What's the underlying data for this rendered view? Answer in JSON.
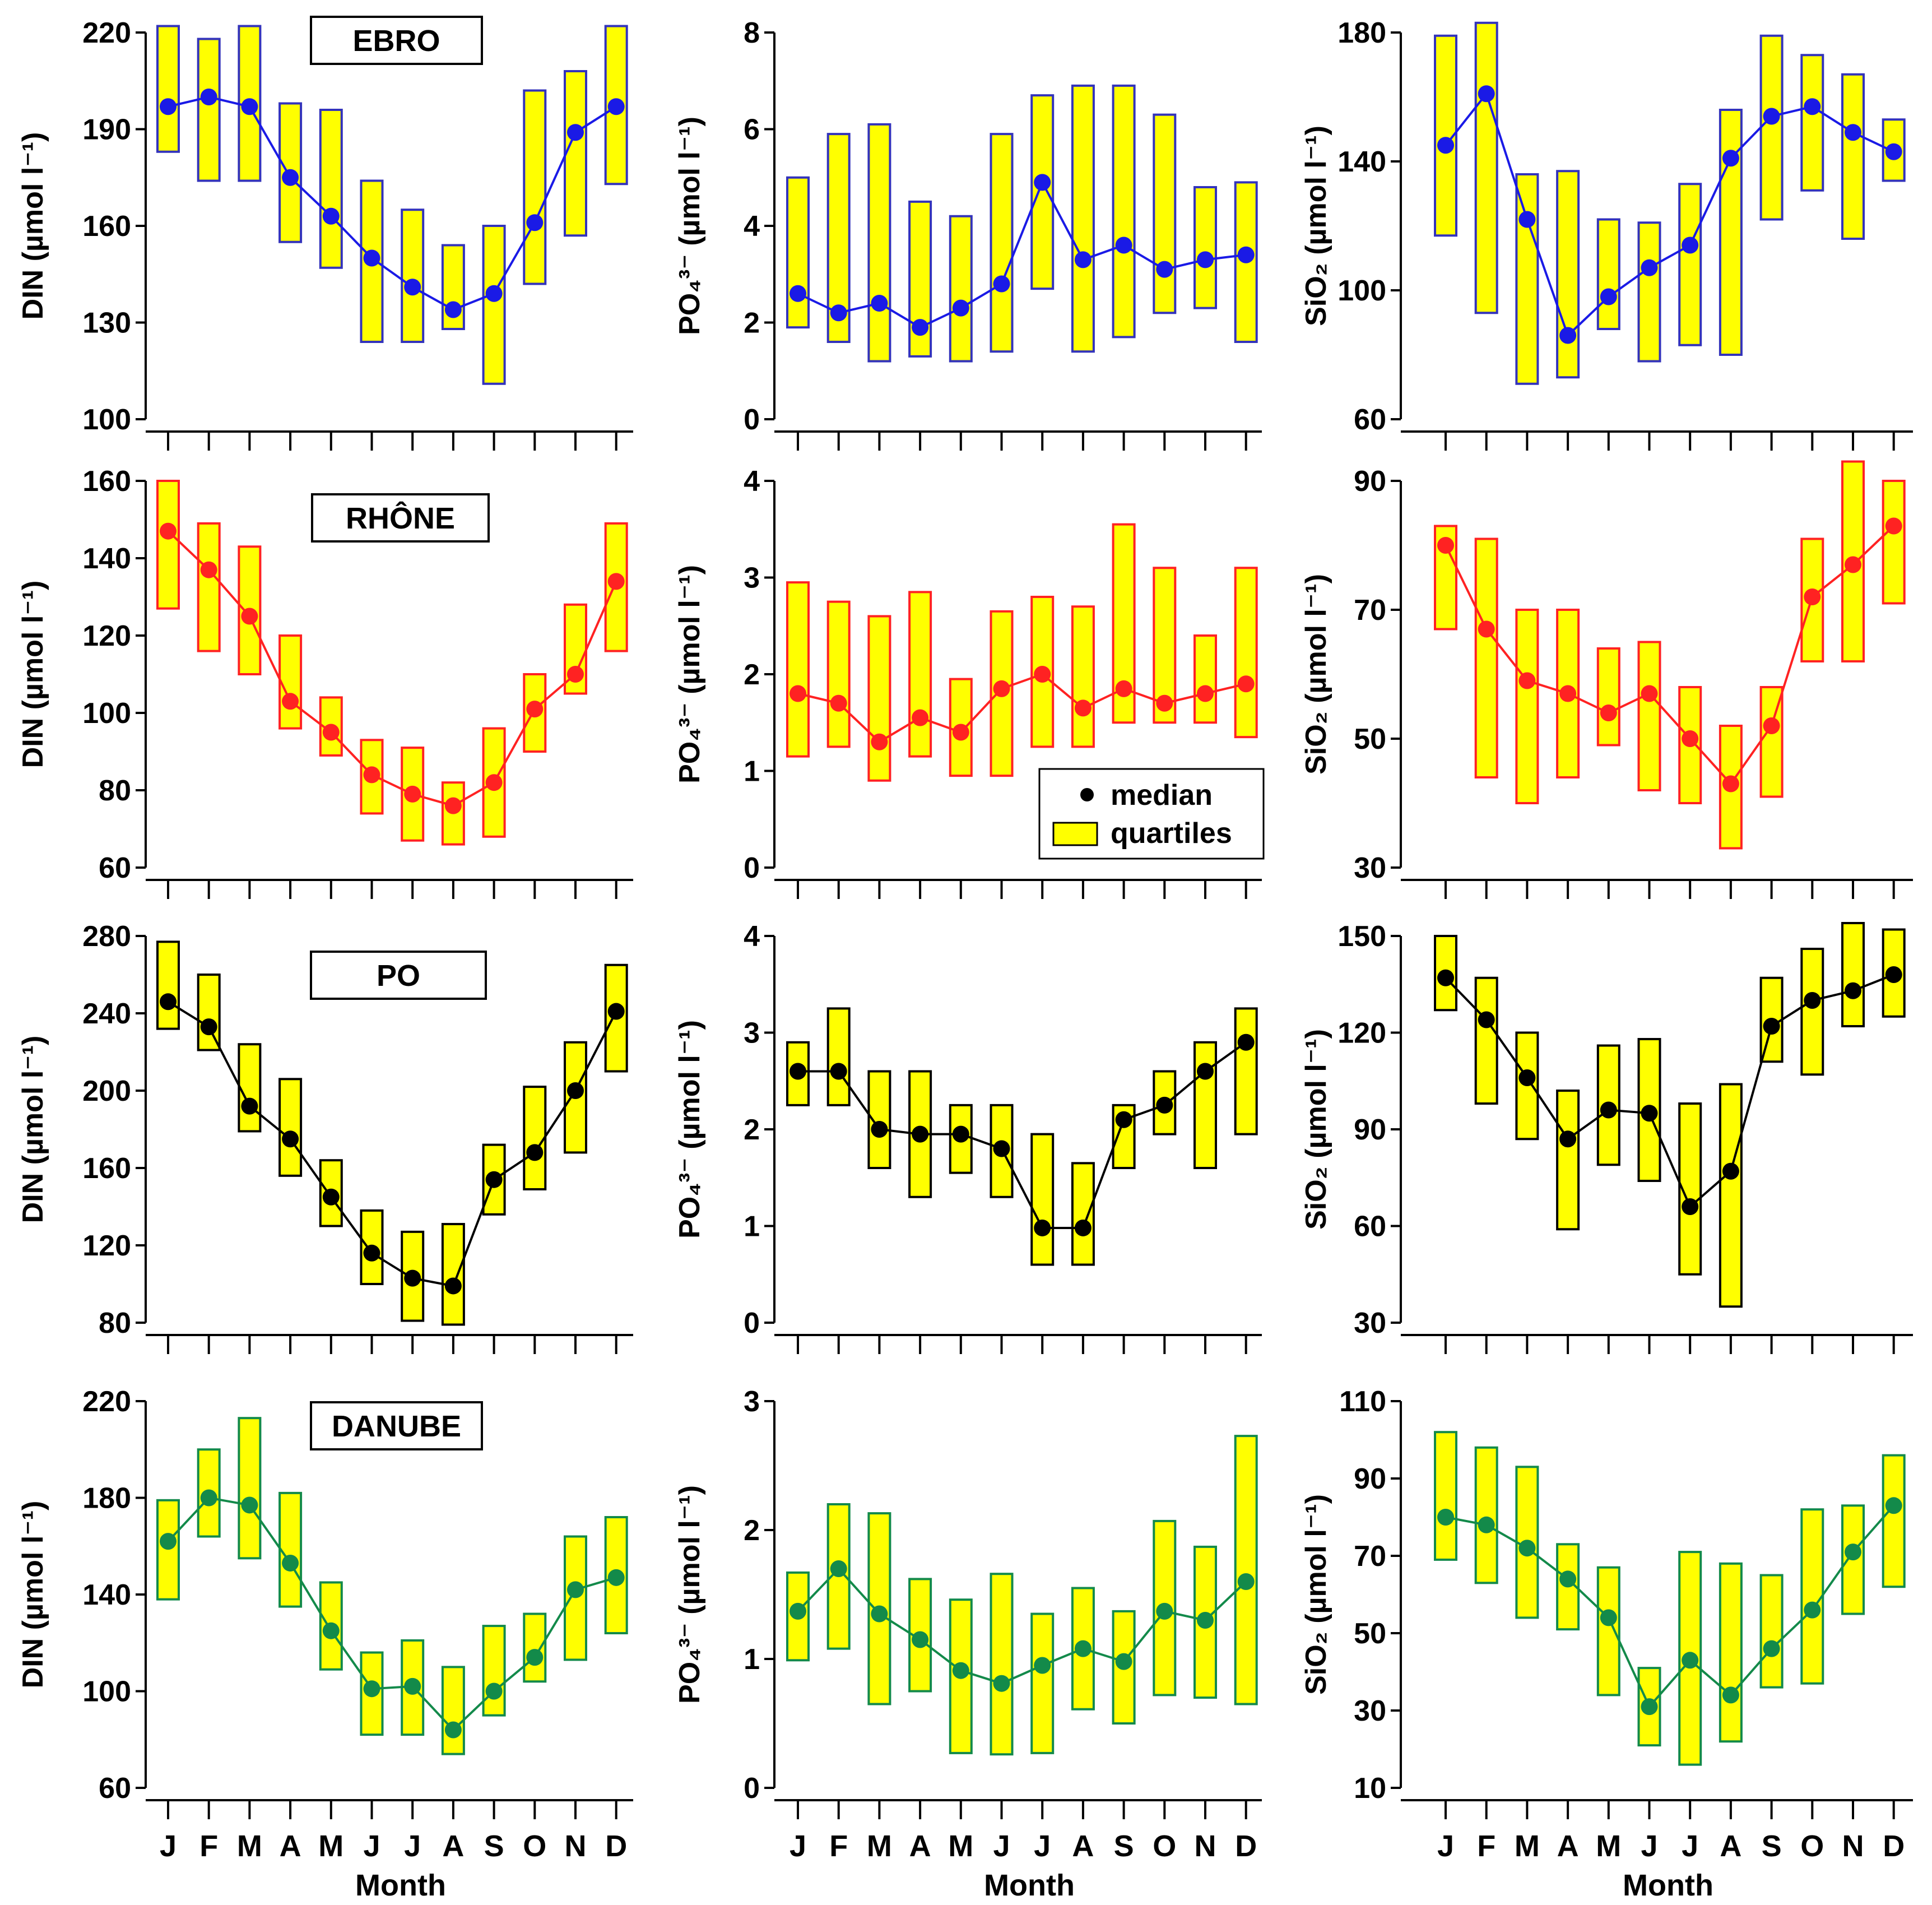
{
  "chart_data": {
    "type": "box",
    "rivers": [
      {
        "name": "EBRO",
        "color": "#1a1ae6",
        "line_color": "#1a1ae6",
        "box_edge": "#3333bb"
      },
      {
        "name": "RHÔNE",
        "color": "#ff2222",
        "line_color": "#ff2222",
        "box_edge": "#ff2222"
      },
      {
        "name": "PO",
        "color": "#000000",
        "line_color": "#000000",
        "box_edge": "#000000"
      },
      {
        "name": "DANUBE",
        "color": "#138a4a",
        "line_color": "#138a4a",
        "box_edge": "#138a4a"
      }
    ],
    "box_fill": "#ffff00",
    "months": [
      "J",
      "F",
      "M",
      "A",
      "M",
      "J",
      "J",
      "A",
      "S",
      "O",
      "N",
      "D"
    ],
    "xlabel": "Month",
    "ylabels": {
      "DIN": "DIN (µmol l⁻¹)",
      "PO4": "PO₄³⁻ (µmol l⁻¹)",
      "SiO2": "SiO₂ (µmol l⁻¹)"
    },
    "legend": {
      "median": "median",
      "quartiles": "quartiles",
      "location": "bottom-right of RHÔNE PO4 panel"
    },
    "panels": [
      {
        "river": "EBRO",
        "variable": "DIN",
        "ylim": [
          100,
          220
        ],
        "yticks": [
          100,
          130,
          160,
          190,
          220
        ],
        "median": [
          197,
          200,
          197,
          175,
          163,
          150,
          141,
          134,
          139,
          161,
          189,
          197
        ],
        "q1": [
          183,
          174,
          174,
          155,
          147,
          124,
          124,
          128,
          111,
          142,
          157,
          173
        ],
        "q3": [
          222,
          218,
          222,
          198,
          196,
          174,
          165,
          154,
          160,
          202,
          208,
          222
        ]
      },
      {
        "river": "EBRO",
        "variable": "PO4",
        "ylim": [
          0,
          8
        ],
        "yticks": [
          0,
          2,
          4,
          6,
          8
        ],
        "median": [
          2.6,
          2.2,
          2.4,
          1.9,
          2.3,
          2.8,
          4.9,
          3.3,
          3.6,
          3.1,
          3.3,
          3.4
        ],
        "q1": [
          1.9,
          1.6,
          1.2,
          1.3,
          1.2,
          1.4,
          2.7,
          1.4,
          1.7,
          2.2,
          2.3,
          1.6
        ],
        "q3": [
          5.0,
          5.9,
          6.1,
          4.5,
          4.2,
          5.9,
          6.7,
          6.9,
          6.9,
          6.3,
          4.8,
          4.9
        ]
      },
      {
        "river": "EBRO",
        "variable": "SiO2",
        "ylim": [
          60,
          180
        ],
        "yticks": [
          60,
          100,
          140,
          180
        ],
        "median": [
          145,
          161,
          122,
          86,
          98,
          107,
          114,
          141,
          154,
          157,
          149,
          143
        ],
        "q1": [
          117,
          93,
          71,
          73,
          88,
          78,
          83,
          80,
          122,
          131,
          116,
          134
        ],
        "q3": [
          179,
          183,
          136,
          137,
          122,
          121,
          133,
          156,
          179,
          173,
          167,
          153
        ]
      },
      {
        "river": "RHÔNE",
        "variable": "DIN",
        "ylim": [
          60,
          160
        ],
        "yticks": [
          60,
          80,
          100,
          120,
          140,
          160
        ],
        "median": [
          147,
          137,
          125,
          103,
          95,
          84,
          79,
          76,
          82,
          101,
          110,
          134
        ],
        "q1": [
          127,
          116,
          110,
          96,
          89,
          74,
          67,
          66,
          68,
          90,
          105,
          116
        ],
        "q3": [
          160,
          149,
          143,
          120,
          104,
          93,
          91,
          82,
          96,
          110,
          128,
          149
        ]
      },
      {
        "river": "RHÔNE",
        "variable": "PO4",
        "ylim": [
          0,
          4
        ],
        "yticks": [
          0,
          1,
          2,
          3,
          4
        ],
        "median": [
          1.8,
          1.7,
          1.3,
          1.55,
          1.4,
          1.85,
          2.0,
          1.65,
          1.85,
          1.7,
          1.8,
          1.9
        ],
        "q1": [
          1.15,
          1.25,
          0.9,
          1.15,
          0.95,
          0.95,
          1.25,
          1.25,
          1.5,
          1.5,
          1.5,
          1.35
        ],
        "q3": [
          2.95,
          2.75,
          2.6,
          2.85,
          1.95,
          2.65,
          2.8,
          2.7,
          3.55,
          3.1,
          2.4,
          3.1
        ]
      },
      {
        "river": "RHÔNE",
        "variable": "SiO2",
        "ylim": [
          30,
          90
        ],
        "yticks": [
          30,
          50,
          70,
          90
        ],
        "median": [
          80,
          67,
          59,
          57,
          54,
          57,
          50,
          43,
          52,
          72,
          77,
          83
        ],
        "q1": [
          67,
          44,
          40,
          44,
          49,
          42,
          40,
          33,
          41,
          62,
          62,
          71
        ],
        "q3": [
          83,
          81,
          70,
          70,
          64,
          65,
          58,
          52,
          58,
          81,
          93,
          90
        ]
      },
      {
        "river": "PO",
        "variable": "DIN",
        "ylim": [
          80,
          280
        ],
        "yticks": [
          80,
          120,
          160,
          200,
          240,
          280
        ],
        "median": [
          246,
          233,
          192,
          175,
          145,
          116,
          103,
          99,
          154,
          168,
          200,
          241
        ],
        "q1": [
          232,
          221,
          179,
          156,
          130,
          100,
          81,
          79,
          136,
          149,
          168,
          210
        ],
        "q3": [
          277,
          260,
          224,
          206,
          164,
          138,
          127,
          131,
          172,
          202,
          225,
          265
        ]
      },
      {
        "river": "PO",
        "variable": "PO4",
        "ylim": [
          0,
          4
        ],
        "yticks": [
          0,
          1,
          2,
          3,
          4
        ],
        "median": [
          2.6,
          2.6,
          2.0,
          1.95,
          1.95,
          1.8,
          0.98,
          0.98,
          2.1,
          2.25,
          2.6,
          2.9
        ],
        "q1": [
          2.25,
          2.25,
          1.6,
          1.3,
          1.55,
          1.3,
          0.6,
          0.6,
          1.6,
          1.95,
          1.6,
          1.95
        ],
        "q3": [
          2.9,
          3.25,
          2.6,
          2.6,
          2.25,
          2.25,
          1.95,
          1.65,
          2.25,
          2.6,
          2.9,
          3.25
        ]
      },
      {
        "river": "PO",
        "variable": "SiO2",
        "ylim": [
          30,
          150
        ],
        "yticks": [
          30,
          60,
          90,
          120,
          150
        ],
        "median": [
          137,
          124,
          106,
          87,
          96,
          95,
          66,
          77,
          122,
          130,
          133,
          138
        ],
        "q1": [
          127,
          98,
          87,
          59,
          79,
          74,
          45,
          35,
          111,
          107,
          122,
          125
        ],
        "q3": [
          150,
          137,
          120,
          102,
          116,
          118,
          98,
          104,
          137,
          146,
          154,
          152
        ]
      },
      {
        "river": "DANUBE",
        "variable": "DIN",
        "ylim": [
          60,
          220
        ],
        "yticks": [
          60,
          100,
          140,
          180,
          220
        ],
        "median": [
          162,
          180,
          177,
          153,
          125,
          101,
          102,
          84,
          100,
          114,
          142,
          147
        ],
        "q1": [
          138,
          164,
          155,
          135,
          109,
          82,
          82,
          74,
          90,
          104,
          113,
          124
        ],
        "q3": [
          179,
          200,
          213,
          182,
          145,
          116,
          121,
          110,
          127,
          132,
          164,
          172
        ]
      },
      {
        "river": "DANUBE",
        "variable": "PO4",
        "ylim": [
          0,
          3
        ],
        "yticks": [
          0,
          1,
          2,
          3
        ],
        "median": [
          1.37,
          1.7,
          1.35,
          1.15,
          0.91,
          0.81,
          0.95,
          1.08,
          0.98,
          1.37,
          1.3,
          1.6
        ],
        "q1": [
          0.99,
          1.08,
          0.65,
          0.75,
          0.27,
          0.26,
          0.27,
          0.61,
          0.5,
          0.72,
          0.7,
          0.65
        ],
        "q3": [
          1.67,
          2.2,
          2.13,
          1.62,
          1.46,
          1.66,
          1.35,
          1.55,
          1.37,
          2.07,
          1.87,
          2.73
        ]
      },
      {
        "river": "DANUBE",
        "variable": "SiO2",
        "ylim": [
          10,
          110
        ],
        "yticks": [
          10,
          30,
          50,
          70,
          90,
          110
        ],
        "median": [
          80,
          78,
          72,
          64,
          54,
          31,
          43,
          34,
          46,
          56,
          71,
          83
        ],
        "q1": [
          69,
          63,
          54,
          51,
          34,
          21,
          16,
          22,
          36,
          37,
          55,
          62
        ],
        "q3": [
          102,
          98,
          93,
          73,
          67,
          41,
          71,
          68,
          65,
          82,
          83,
          96
        ]
      }
    ]
  }
}
